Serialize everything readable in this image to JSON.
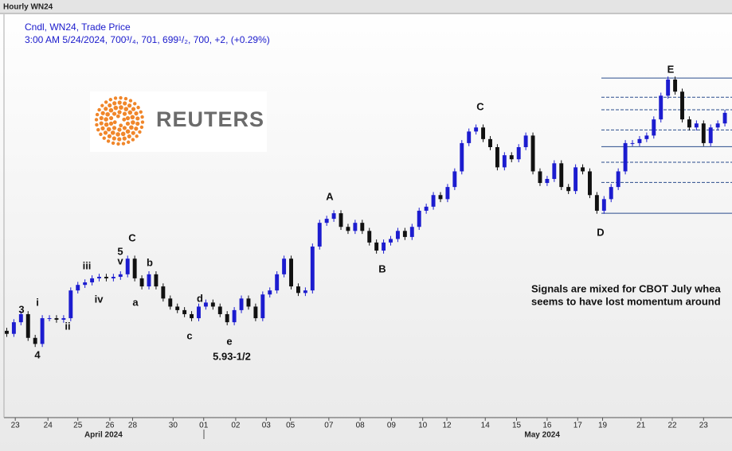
{
  "chart_data": {
    "type": "candlestick",
    "title": "Hourly WN24",
    "subtitle": "Cndl, WN24, Trade Price",
    "quote": "3:00 AM 5/24/2024, 700³/₄, 701, 699¹/₂, 700, +2, (+0.29%)",
    "logo_text": "REUTERS",
    "note_lines": [
      "Signals are mixed for CBOT July whea",
      "seems to have lost momentum around"
    ],
    "annotations": [
      "3",
      "4",
      "i",
      "ii",
      "iii",
      "iv",
      "5",
      "v",
      "C",
      "a",
      "b",
      "c",
      "d",
      "e",
      "5.93-1/2",
      "A",
      "B",
      "C",
      "D",
      "E"
    ],
    "open": [
      592,
      590.5,
      596.25,
      600.25,
      588.5,
      585.5,
      598.25,
      598.25,
      597.5,
      598.25,
      612,
      614.75,
      616,
      618,
      618.75,
      618,
      618.75,
      620,
      627.75,
      618,
      614,
      620,
      614,
      608,
      604,
      602.25,
      600.25,
      598.25,
      604,
      606,
      604,
      600.25,
      596.25,
      602.25,
      608,
      604,
      598.25,
      610,
      612,
      620,
      627.75,
      614,
      610.75,
      612,
      633.75,
      645.5,
      647.5,
      650.25,
      643.5,
      641.5,
      645.5,
      641.5,
      635.75,
      631.75,
      635.75,
      637.5,
      641.5,
      638.5,
      643.5,
      651.5,
      653.5,
      659.25,
      657.25,
      663.25,
      671,
      685,
      690.75,
      692.75,
      687,
      683,
      673,
      679,
      677,
      683,
      688.75,
      671,
      665.25,
      667.25,
      675,
      663.25,
      661.25,
      673,
      671,
      659.25,
      651.5,
      657.25,
      663.25,
      671,
      685,
      685,
      687,
      688.75,
      696.75,
      708.5,
      716.5,
      710.5,
      696.75,
      692.75,
      694.75,
      685,
      692.75,
      694.75
    ],
    "high": [
      593.5,
      597.75,
      601.75,
      601.75,
      590,
      599.75,
      599.75,
      599.75,
      599.75,
      613.5,
      616.25,
      617.5,
      619.5,
      620.25,
      620.25,
      620.25,
      621.5,
      629.25,
      629.25,
      619.5,
      621.5,
      621.5,
      615.5,
      609.5,
      605.5,
      603.75,
      601.75,
      605.5,
      607.5,
      607.5,
      605.5,
      601.75,
      603.75,
      609.5,
      609.5,
      605.5,
      611.5,
      613.5,
      621.5,
      629.25,
      629.25,
      615.5,
      613.5,
      635.25,
      647,
      649,
      651.75,
      651.75,
      645,
      647,
      647,
      643,
      637.25,
      637.25,
      639,
      643,
      643,
      645,
      653,
      655,
      660.75,
      660.75,
      664.75,
      672.5,
      686.5,
      692.25,
      694.25,
      694.25,
      688.5,
      684.5,
      680.5,
      680.5,
      684.5,
      690.25,
      690.25,
      672.5,
      668.75,
      676.5,
      676.5,
      664.75,
      674.5,
      674.5,
      672.5,
      660.75,
      658.75,
      664.75,
      672.5,
      686.5,
      686.5,
      688.5,
      690.25,
      698.25,
      710,
      718,
      718,
      712,
      698.25,
      696.25,
      696.25,
      694.25,
      696.25,
      701.5
    ],
    "low": [
      589,
      589,
      594.75,
      587,
      584,
      584,
      596.75,
      596,
      596,
      596.75,
      610.5,
      613.25,
      614.5,
      616.5,
      616.5,
      616.5,
      617.25,
      618.5,
      616.5,
      612.5,
      612.5,
      612.5,
      606.5,
      602.5,
      600.75,
      598.75,
      596.75,
      596.75,
      602.5,
      602.5,
      598.75,
      594.75,
      594.75,
      600.75,
      602.5,
      596.75,
      596.75,
      608.5,
      610.5,
      618.5,
      612.5,
      609.25,
      609.25,
      610.5,
      632.25,
      644,
      646,
      642,
      640,
      640,
      640,
      634.25,
      630.25,
      630.25,
      634.25,
      636,
      637,
      637,
      642,
      650,
      652,
      655.75,
      655.75,
      661.75,
      669.5,
      683.5,
      689.25,
      685.5,
      681.5,
      671.5,
      671.5,
      675.5,
      675.5,
      681.5,
      669.5,
      663.75,
      663.75,
      665.75,
      661.75,
      659.75,
      659.75,
      669.5,
      657.75,
      650,
      650,
      655.75,
      661.75,
      669.5,
      683.5,
      683.5,
      685.5,
      687.25,
      695.25,
      707,
      709,
      695.25,
      691.25,
      691.25,
      683.5,
      683.5,
      691.25,
      693.25
    ],
    "close": [
      590.5,
      596.25,
      600.25,
      588.5,
      585.5,
      598.25,
      598.25,
      597.5,
      598.25,
      612,
      614.75,
      616,
      618,
      618.75,
      618,
      618.75,
      620,
      627.75,
      618,
      614,
      620,
      614,
      608,
      604,
      602.25,
      600.25,
      598.25,
      604,
      606,
      604,
      600.25,
      596.25,
      602.25,
      608,
      604,
      598.25,
      610,
      612,
      620,
      627.75,
      614,
      610.75,
      612,
      633.75,
      645.5,
      647.5,
      650.25,
      643.5,
      641.5,
      645.5,
      641.5,
      635.75,
      631.75,
      635.75,
      637.5,
      641.5,
      638.5,
      643.5,
      651.5,
      653.5,
      659.25,
      657.25,
      663.25,
      671,
      685,
      690.75,
      692.75,
      687,
      683,
      673,
      679,
      677,
      683,
      688.75,
      671,
      665.25,
      667.25,
      675,
      663.25,
      661.25,
      673,
      671,
      659.25,
      651.5,
      657.25,
      663.25,
      671,
      685,
      685,
      687,
      688.75,
      696.75,
      708.5,
      716.5,
      710.5,
      696.75,
      692.75,
      694.75,
      685,
      692.75,
      694.75,
      700
    ],
    "up_color": "#1c1ccf",
    "down_color": "#111111",
    "levels": [
      717.25,
      707.75,
      701.5,
      691.5,
      683.25,
      675.5,
      665.5,
      650.25
    ],
    "level_dashed": [
      false,
      true,
      true,
      true,
      false,
      true,
      true,
      false
    ],
    "level_color": "#2b4c8c",
    "xlim": [
      -0.5,
      102
    ],
    "ylim": [
      549,
      750
    ],
    "xticks": [
      {
        "value": 1.2,
        "label": "23"
      },
      {
        "value": 5.8,
        "label": "24"
      },
      {
        "value": 10,
        "label": "25"
      },
      {
        "value": 14.5,
        "label": "26"
      },
      {
        "value": 17.7,
        "label": "28"
      },
      {
        "value": 23.4,
        "label": "30"
      },
      {
        "value": 27.7,
        "label": "01"
      },
      {
        "value": 32.2,
        "label": "02"
      },
      {
        "value": 36.5,
        "label": "03"
      },
      {
        "value": 39.9,
        "label": "05"
      },
      {
        "value": 45.3,
        "label": "07"
      },
      {
        "value": 49.7,
        "label": "08"
      },
      {
        "value": 54.1,
        "label": "09"
      },
      {
        "value": 58.5,
        "label": "10"
      },
      {
        "value": 61.9,
        "label": "12"
      },
      {
        "value": 67.3,
        "label": "14"
      },
      {
        "value": 71.7,
        "label": "15"
      },
      {
        "value": 76,
        "label": "16"
      },
      {
        "value": 80.3,
        "label": "17"
      },
      {
        "value": 83.8,
        "label": "19"
      },
      {
        "value": 89.2,
        "label": "21"
      },
      {
        "value": 93.6,
        "label": "22"
      },
      {
        "value": 98,
        "label": "23"
      }
    ],
    "months": [
      {
        "value": 13.6,
        "label": "April 2024"
      },
      {
        "value": 75.3,
        "label": "May 2024"
      }
    ]
  }
}
